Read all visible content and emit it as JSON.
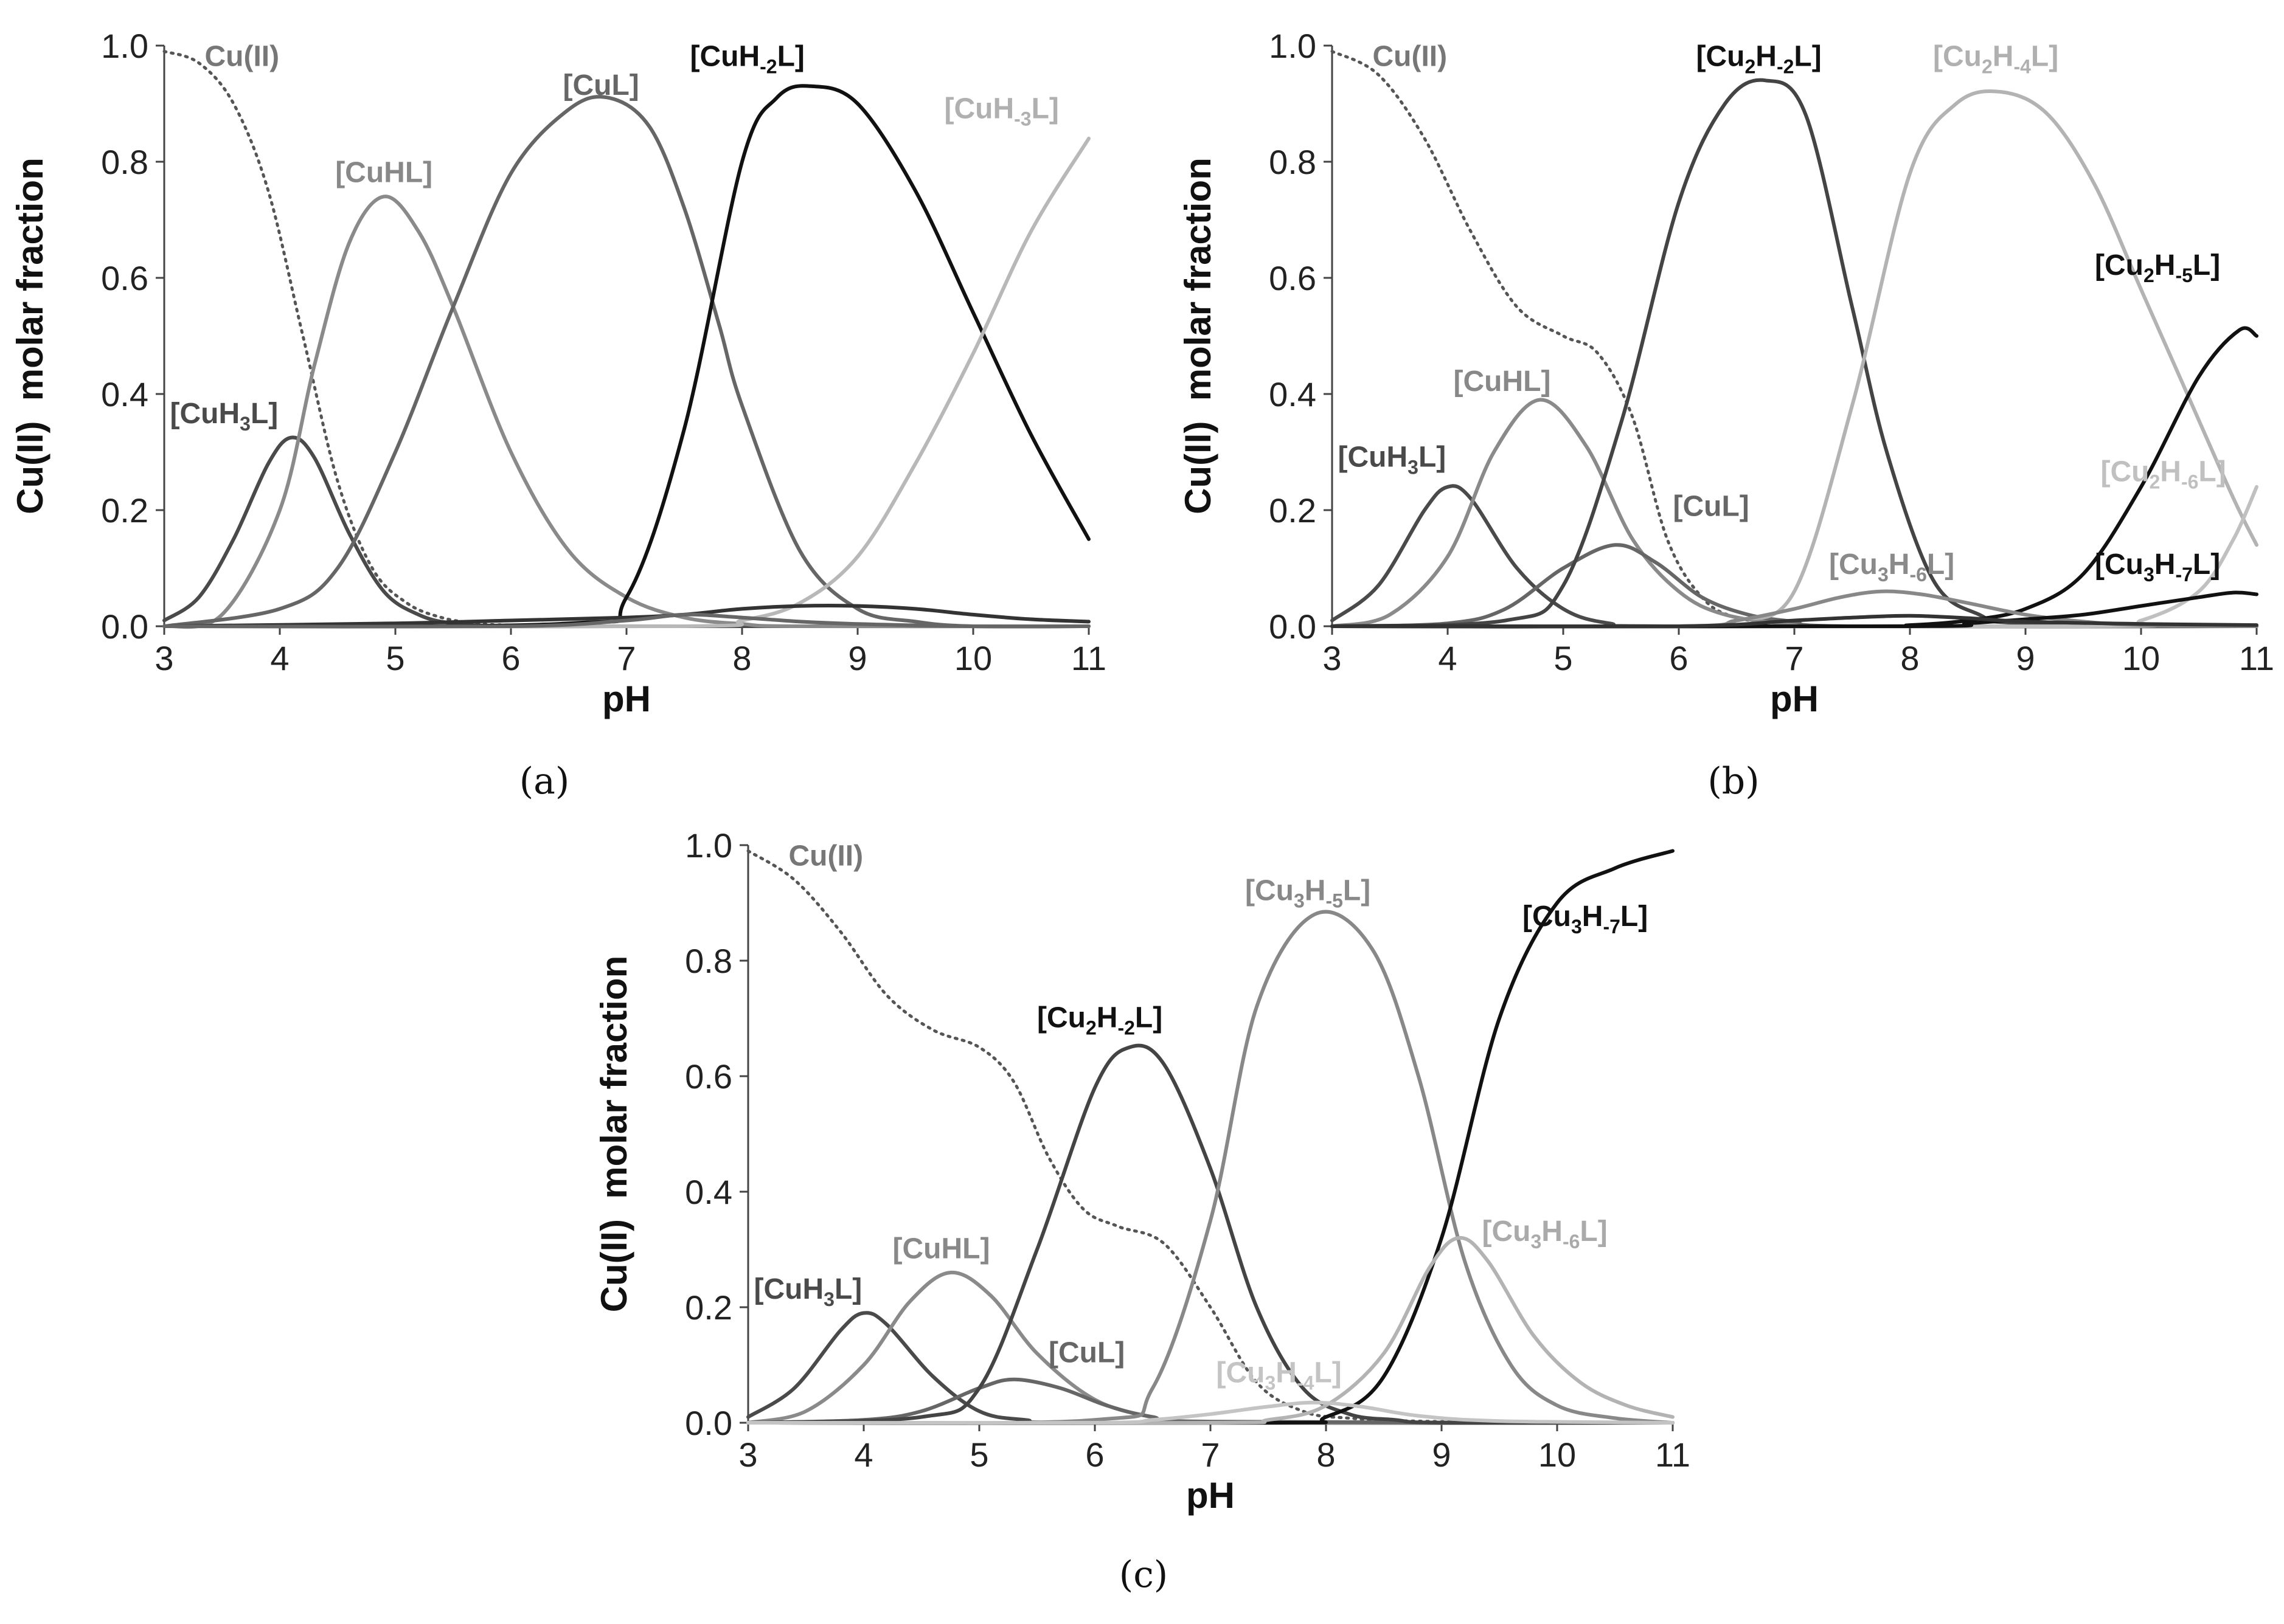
{
  "chart_data": [
    {
      "id": "a",
      "type": "line",
      "caption": "(a)",
      "xlabel": "pH",
      "ylabel": "Cu(II)  molar fraction",
      "xlim": [
        3,
        11
      ],
      "ylim": [
        0,
        1
      ],
      "xticks": [
        "3",
        "4",
        "5",
        "6",
        "7",
        "8",
        "9",
        "10",
        "11"
      ],
      "yticks": [
        "0.0",
        "0.2",
        "0.4",
        "0.6",
        "0.8",
        "1.0"
      ],
      "grid": false,
      "series": [
        {
          "name": "Cu(II)",
          "color": "#555555",
          "dashed": true,
          "x": [
            3,
            3.3,
            3.6,
            3.9,
            4.2,
            4.5,
            4.8,
            5.1,
            5.4,
            5.7,
            6,
            7,
            8,
            9,
            10,
            11
          ],
          "y": [
            0.99,
            0.97,
            0.9,
            0.75,
            0.5,
            0.25,
            0.1,
            0.04,
            0.015,
            0.005,
            0.002,
            0,
            0,
            0,
            0,
            0
          ]
        },
        {
          "name": "[CuH3L]",
          "color": "#4a4a4a",
          "x": [
            3,
            3.3,
            3.6,
            3.9,
            4.1,
            4.3,
            4.6,
            4.9,
            5.2,
            5.5,
            6,
            7,
            11
          ],
          "y": [
            0.01,
            0.05,
            0.15,
            0.28,
            0.325,
            0.29,
            0.16,
            0.06,
            0.02,
            0.005,
            0,
            0,
            0
          ]
        },
        {
          "name": "[CuHL]",
          "color": "#8a8a8a",
          "x": [
            3,
            3.5,
            4,
            4.3,
            4.6,
            4.9,
            5.2,
            5.5,
            6,
            6.5,
            7,
            7.5,
            8,
            8.5,
            11
          ],
          "y": [
            0,
            0.02,
            0.2,
            0.45,
            0.66,
            0.74,
            0.68,
            0.55,
            0.3,
            0.13,
            0.05,
            0.015,
            0.004,
            0,
            0
          ]
        },
        {
          "name": "[CuL]",
          "color": "#666666",
          "x": [
            3,
            4,
            4.5,
            5,
            5.5,
            6,
            6.5,
            6.85,
            7.2,
            7.5,
            7.8,
            8,
            8.5,
            9,
            9.5,
            10,
            11
          ],
          "y": [
            0,
            0.03,
            0.1,
            0.3,
            0.55,
            0.78,
            0.89,
            0.91,
            0.86,
            0.72,
            0.52,
            0.38,
            0.13,
            0.03,
            0.008,
            0,
            0
          ]
        },
        {
          "name": "[CuH-2L]",
          "color": "#111111",
          "x": [
            3,
            6.5,
            7,
            7.5,
            8,
            8.3,
            8.6,
            9,
            9.5,
            10,
            10.5,
            11
          ],
          "y": [
            0,
            0.005,
            0.05,
            0.34,
            0.8,
            0.91,
            0.93,
            0.9,
            0.75,
            0.54,
            0.33,
            0.15
          ]
        },
        {
          "name": "[CuH-3L]",
          "color": "#b8b8b8",
          "x": [
            3,
            7.5,
            8,
            8.5,
            9,
            9.5,
            10,
            10.5,
            11
          ],
          "y": [
            0,
            0,
            0.01,
            0.04,
            0.12,
            0.28,
            0.47,
            0.68,
            0.84
          ]
        },
        {
          "name": "",
          "color": "#333333",
          "x": [
            3,
            5,
            6,
            7,
            7.5,
            8,
            8.5,
            9,
            9.5,
            10,
            10.5,
            11
          ],
          "y": [
            0,
            0.005,
            0.01,
            0.015,
            0.02,
            0.03,
            0.035,
            0.035,
            0.03,
            0.02,
            0.012,
            0.008
          ]
        },
        {
          "name": "",
          "color": "#666666",
          "x": [
            3,
            6,
            7,
            7.5,
            8,
            8.5,
            9,
            10,
            11
          ],
          "y": [
            0,
            0,
            0.01,
            0.02,
            0.015,
            0.008,
            0.004,
            0,
            0
          ]
        }
      ],
      "labels": [
        {
          "text": "Cu(II)",
          "x": 3.35,
          "y": 0.965,
          "color": "#777777"
        },
        {
          "text": "[CuH3L]",
          "x": 3.05,
          "y": 0.35,
          "color": "#4a4a4a"
        },
        {
          "text": "[CuHL]",
          "x": 4.48,
          "y": 0.765,
          "color": "#888888"
        },
        {
          "text": "[CuL]",
          "x": 6.45,
          "y": 0.915,
          "color": "#666666"
        },
        {
          "text": "[CuH-2L]",
          "x": 7.55,
          "y": 0.965,
          "color": "#111111"
        },
        {
          "text": "[CuH-3L]",
          "x": 9.75,
          "y": 0.875,
          "color": "#b0b0b0"
        }
      ]
    },
    {
      "id": "b",
      "type": "line",
      "caption": "(b)",
      "xlabel": "pH",
      "ylabel": "Cu(II)  molar fraction",
      "xlim": [
        3,
        11
      ],
      "ylim": [
        0,
        1
      ],
      "xticks": [
        "3",
        "4",
        "5",
        "6",
        "7",
        "8",
        "9",
        "10",
        "11"
      ],
      "yticks": [
        "0.0",
        "0.2",
        "0.4",
        "0.6",
        "0.8",
        "1.0"
      ],
      "grid": false,
      "series": [
        {
          "name": "Cu(II)",
          "color": "#555555",
          "dashed": true,
          "x": [
            3,
            3.4,
            3.8,
            4.2,
            4.6,
            5,
            5.3,
            5.6,
            5.9,
            6.2,
            6.5,
            7,
            7.5,
            11
          ],
          "y": [
            0.99,
            0.95,
            0.84,
            0.68,
            0.55,
            0.5,
            0.47,
            0.36,
            0.15,
            0.05,
            0.015,
            0.003,
            0,
            0
          ]
        },
        {
          "name": "[CuH3L]",
          "color": "#4a4a4a",
          "x": [
            3,
            3.4,
            3.8,
            4,
            4.2,
            4.6,
            5,
            5.4,
            6,
            11
          ],
          "y": [
            0.01,
            0.07,
            0.2,
            0.24,
            0.22,
            0.1,
            0.03,
            0.005,
            0,
            0
          ]
        },
        {
          "name": "[CuHL]",
          "color": "#8a8a8a",
          "x": [
            3,
            3.5,
            4,
            4.4,
            4.8,
            5.2,
            5.6,
            6,
            6.4,
            7,
            7.5,
            11
          ],
          "y": [
            0,
            0.02,
            0.12,
            0.3,
            0.39,
            0.31,
            0.15,
            0.06,
            0.02,
            0.003,
            0,
            0
          ]
        },
        {
          "name": "[CuL]",
          "color": "#666666",
          "x": [
            3,
            4,
            4.5,
            5,
            5.45,
            5.8,
            6.2,
            6.6,
            7,
            7.5,
            11
          ],
          "y": [
            0,
            0.005,
            0.03,
            0.1,
            0.14,
            0.11,
            0.05,
            0.02,
            0.008,
            0,
            0
          ]
        },
        {
          "name": "[Cu2H-2L]",
          "color": "#444444",
          "x": [
            3,
            4.5,
            5,
            5.5,
            6,
            6.4,
            6.75,
            7.1,
            7.5,
            7.8,
            8.2,
            8.6,
            9,
            11
          ],
          "y": [
            0,
            0.01,
            0.07,
            0.35,
            0.73,
            0.9,
            0.94,
            0.88,
            0.55,
            0.3,
            0.08,
            0.02,
            0.005,
            0
          ]
        },
        {
          "name": "[Cu2H-4L]",
          "color": "#b3b3b3",
          "x": [
            3,
            6,
            6.5,
            7,
            7.5,
            8,
            8.4,
            8.8,
            9.2,
            9.6,
            10,
            10.4,
            10.8,
            11
          ],
          "y": [
            0,
            0,
            0.01,
            0.06,
            0.38,
            0.78,
            0.9,
            0.92,
            0.88,
            0.76,
            0.58,
            0.4,
            0.22,
            0.14
          ]
        },
        {
          "name": "[Cu2H-5L]",
          "color": "#111111",
          "x": [
            3,
            7.5,
            8,
            8.5,
            9,
            9.5,
            10,
            10.5,
            10.85,
            11
          ],
          "y": [
            0,
            0,
            0.002,
            0.01,
            0.03,
            0.09,
            0.24,
            0.43,
            0.51,
            0.5
          ]
        },
        {
          "name": "[Cu2H-6L]",
          "color": "#c0c0c0",
          "x": [
            3,
            9.5,
            10,
            10.5,
            10.8,
            11
          ],
          "y": [
            0,
            0,
            0.01,
            0.06,
            0.15,
            0.24
          ]
        },
        {
          "name": "[Cu3H-6L]",
          "color": "#888888",
          "x": [
            3,
            6,
            6.5,
            7,
            7.4,
            7.75,
            8.1,
            8.5,
            9,
            9.5,
            10,
            11
          ],
          "y": [
            0,
            0,
            0.01,
            0.03,
            0.05,
            0.06,
            0.055,
            0.04,
            0.02,
            0.008,
            0.002,
            0
          ]
        },
        {
          "name": "[Cu3H-7L]",
          "color": "#111111",
          "x": [
            3,
            8,
            8.5,
            9,
            9.5,
            10,
            10.5,
            10.8,
            11
          ],
          "y": [
            0,
            0,
            0.005,
            0.012,
            0.02,
            0.035,
            0.05,
            0.058,
            0.055
          ]
        },
        {
          "name": "",
          "color": "#333333",
          "x": [
            3,
            6,
            7,
            7.5,
            8,
            8.5,
            9,
            10,
            11
          ],
          "y": [
            0,
            0,
            0.01,
            0.015,
            0.018,
            0.014,
            0.008,
            0.004,
            0.002
          ]
        }
      ],
      "labels": [
        {
          "text": "Cu(II)",
          "x": 3.35,
          "y": 0.965,
          "color": "#777777"
        },
        {
          "text": "[CuH3L]",
          "x": 3.05,
          "y": 0.275,
          "color": "#4a4a4a"
        },
        {
          "text": "[CuHL]",
          "x": 4.05,
          "y": 0.405,
          "color": "#888888"
        },
        {
          "text": "[CuL]",
          "x": 5.95,
          "y": 0.19,
          "color": "#666666"
        },
        {
          "text": "[Cu2H-2L]",
          "x": 6.15,
          "y": 0.965,
          "color": "#111111"
        },
        {
          "text": "[Cu2H-4L]",
          "x": 8.2,
          "y": 0.965,
          "color": "#b0b0b0"
        },
        {
          "text": "[Cu2H-5L]",
          "x": 9.6,
          "y": 0.605,
          "color": "#111111"
        },
        {
          "text": "[Cu2H-6L]",
          "x": 9.65,
          "y": 0.25,
          "color": "#c0c0c0"
        },
        {
          "text": "[Cu3H-6L]",
          "x": 7.3,
          "y": 0.09,
          "color": "#8a8a8a"
        },
        {
          "text": "[Cu3H-7L]",
          "x": 9.6,
          "y": 0.09,
          "color": "#111111"
        }
      ]
    },
    {
      "id": "c",
      "type": "line",
      "caption": "(c)",
      "xlabel": "pH",
      "ylabel": "Cu(II)  molar fraction",
      "xlim": [
        3,
        11
      ],
      "ylim": [
        0,
        1
      ],
      "xticks": [
        "3",
        "4",
        "5",
        "6",
        "7",
        "8",
        "9",
        "10",
        "11"
      ],
      "yticks": [
        "0.0",
        "0.2",
        "0.4",
        "0.6",
        "0.8",
        "1.0"
      ],
      "grid": false,
      "series": [
        {
          "name": "Cu(II)",
          "color": "#555555",
          "dashed": true,
          "x": [
            3,
            3.4,
            3.8,
            4.2,
            4.6,
            5,
            5.3,
            5.6,
            5.9,
            6.2,
            6.6,
            7,
            7.4,
            7.8,
            8.2,
            9,
            11
          ],
          "y": [
            0.99,
            0.94,
            0.85,
            0.74,
            0.68,
            0.65,
            0.59,
            0.46,
            0.37,
            0.34,
            0.31,
            0.2,
            0.07,
            0.02,
            0.008,
            0.002,
            0
          ]
        },
        {
          "name": "[CuH3L]",
          "color": "#4a4a4a",
          "x": [
            3,
            3.4,
            3.8,
            4,
            4.2,
            4.6,
            5,
            5.4,
            6,
            11
          ],
          "y": [
            0.01,
            0.06,
            0.16,
            0.19,
            0.17,
            0.08,
            0.02,
            0.005,
            0,
            0
          ]
        },
        {
          "name": "[CuHL]",
          "color": "#8a8a8a",
          "x": [
            3,
            3.5,
            4,
            4.4,
            4.75,
            5.1,
            5.5,
            6,
            6.5,
            7,
            11
          ],
          "y": [
            0,
            0.02,
            0.1,
            0.21,
            0.26,
            0.22,
            0.12,
            0.04,
            0.01,
            0,
            0
          ]
        },
        {
          "name": "[CuL]",
          "color": "#666666",
          "x": [
            3,
            4,
            4.5,
            5,
            5.3,
            5.7,
            6.1,
            6.5,
            7,
            11
          ],
          "y": [
            0,
            0.005,
            0.02,
            0.06,
            0.075,
            0.06,
            0.03,
            0.01,
            0.002,
            0
          ]
        },
        {
          "name": "[Cu2H-2L]",
          "color": "#444444",
          "x": [
            3,
            4.5,
            5,
            5.5,
            6,
            6.3,
            6.6,
            7,
            7.4,
            7.8,
            8.2,
            8.6,
            9,
            11
          ],
          "y": [
            0,
            0.01,
            0.06,
            0.3,
            0.58,
            0.65,
            0.62,
            0.44,
            0.2,
            0.06,
            0.015,
            0.005,
            0,
            0
          ]
        },
        {
          "name": "[Cu3H-5L]",
          "color": "#888888",
          "x": [
            3,
            6,
            6.5,
            7,
            7.4,
            7.9,
            8.4,
            8.8,
            9.2,
            9.6,
            10,
            10.5,
            11
          ],
          "y": [
            0,
            0.005,
            0.06,
            0.35,
            0.72,
            0.88,
            0.82,
            0.6,
            0.28,
            0.1,
            0.03,
            0.008,
            0
          ]
        },
        {
          "name": "[Cu3H-7L]",
          "color": "#111111",
          "x": [
            3,
            7.5,
            8,
            8.5,
            9,
            9.5,
            10,
            10.5,
            11
          ],
          "y": [
            0,
            0,
            0.01,
            0.08,
            0.32,
            0.7,
            0.9,
            0.96,
            0.99
          ]
        },
        {
          "name": "[Cu3H-6L]",
          "color": "#b3b3b3",
          "x": [
            3,
            7,
            7.5,
            8,
            8.5,
            8.9,
            9.15,
            9.4,
            9.8,
            10.2,
            10.6,
            11
          ],
          "y": [
            0,
            0,
            0.005,
            0.03,
            0.12,
            0.27,
            0.32,
            0.28,
            0.15,
            0.07,
            0.03,
            0.01
          ]
        },
        {
          "name": "[Cu3H-4L]",
          "color": "#c4c4c4",
          "x": [
            3,
            6,
            6.5,
            7,
            7.5,
            7.9,
            8.3,
            8.8,
            9.5,
            11
          ],
          "y": [
            0,
            0,
            0.005,
            0.015,
            0.028,
            0.035,
            0.028,
            0.012,
            0.003,
            0
          ]
        }
      ],
      "labels": [
        {
          "text": "Cu(II)",
          "x": 3.35,
          "y": 0.965,
          "color": "#777777"
        },
        {
          "text": "[CuH3L]",
          "x": 3.05,
          "y": 0.215,
          "color": "#4a4a4a"
        },
        {
          "text": "[CuHL]",
          "x": 4.25,
          "y": 0.285,
          "color": "#888888"
        },
        {
          "text": "[CuL]",
          "x": 5.6,
          "y": 0.105,
          "color": "#666666"
        },
        {
          "text": "[Cu2H-2L]",
          "x": 5.5,
          "y": 0.685,
          "color": "#111111"
        },
        {
          "text": "[Cu3H-5L]",
          "x": 7.3,
          "y": 0.905,
          "color": "#888888"
        },
        {
          "text": "[Cu3H-7L]",
          "x": 9.7,
          "y": 0.86,
          "color": "#111111"
        },
        {
          "text": "[Cu3H-6L]",
          "x": 9.35,
          "y": 0.315,
          "color": "#aaaaaa"
        },
        {
          "text": "[Cu3H-4L]",
          "x": 7.05,
          "y": 0.07,
          "color": "#c4c4c4"
        }
      ]
    }
  ]
}
